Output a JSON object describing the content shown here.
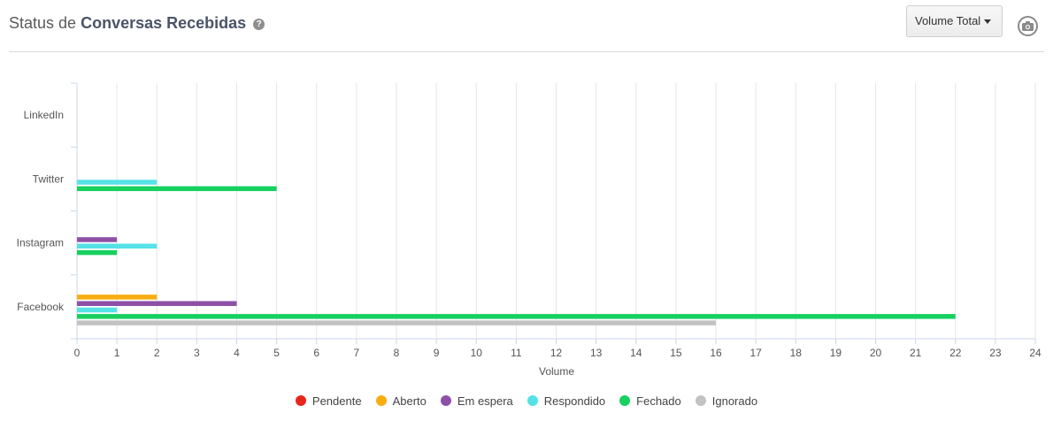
{
  "header": {
    "title_prefix": "Status de",
    "title_bold": "Conversas Recebidas",
    "help_icon": "question-circle-icon",
    "dropdown_label": "Volume Total",
    "camera_icon": "camera-icon"
  },
  "chart_data": {
    "type": "bar",
    "orientation": "horizontal",
    "categories": [
      "LinkedIn",
      "Twitter",
      "Instagram",
      "Facebook"
    ],
    "series": [
      {
        "name": "Pendente",
        "color": "#e8261c",
        "values": [
          0,
          0,
          0,
          0
        ]
      },
      {
        "name": "Aberto",
        "color": "#f7ad12",
        "values": [
          0,
          0,
          0,
          2
        ]
      },
      {
        "name": "Em espera",
        "color": "#8e4fa6",
        "values": [
          0,
          0,
          1,
          4
        ]
      },
      {
        "name": "Respondido",
        "color": "#55e2e7",
        "values": [
          0,
          2,
          2,
          1
        ]
      },
      {
        "name": "Fechado",
        "color": "#17d060",
        "values": [
          0,
          5,
          1,
          22
        ]
      },
      {
        "name": "Ignorado",
        "color": "#c2c2c2",
        "values": [
          0,
          0,
          0,
          16
        ]
      }
    ],
    "xlabel": "Volume",
    "xlim": [
      0,
      24
    ],
    "xticks": [
      "0",
      "1",
      "2",
      "3",
      "4",
      "5",
      "6",
      "7",
      "8",
      "9",
      "10",
      "11",
      "12",
      "13",
      "14",
      "15",
      "16",
      "17",
      "18",
      "19",
      "20",
      "21",
      "22",
      "23",
      "24"
    ],
    "grid": true,
    "legend_position": "bottom"
  }
}
